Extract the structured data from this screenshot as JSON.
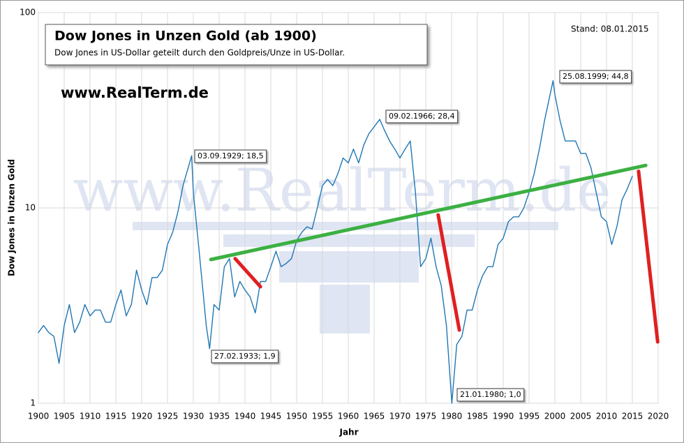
{
  "chart_data": {
    "type": "line",
    "title": "Dow Jones in Unzen Gold  (ab 1900)",
    "subtitle": "Dow Jones in US-Dollar geteilt durch  den Goldpreis/Unze in US-Dollar.",
    "stand": "Stand:  08.01.2015",
    "website": "www.RealTerm.de",
    "watermark": "www.RealTerm.de",
    "x_label": "Jahr",
    "y_label": "Dow Jones in Unzen Gold",
    "log_y": true,
    "grid": true,
    "color": "#1f77b4",
    "xlim": [
      1900,
      2020
    ],
    "ylim": [
      1,
      100
    ],
    "xticks": [
      1900,
      1905,
      1910,
      1915,
      1920,
      1925,
      1930,
      1935,
      1940,
      1945,
      1950,
      1955,
      1960,
      1965,
      1970,
      1975,
      1980,
      1985,
      1990,
      1995,
      2000,
      2005,
      2010,
      2015,
      2020
    ],
    "yticks": [
      1,
      10,
      100
    ],
    "x": [
      1900,
      1901,
      1902,
      1903,
      1904,
      1905,
      1906,
      1907,
      1908,
      1909,
      1910,
      1911,
      1912,
      1913,
      1914,
      1915,
      1916,
      1917,
      1918,
      1919,
      1920,
      1921,
      1922,
      1923,
      1924,
      1925,
      1926,
      1927,
      1928,
      1929.67,
      1930,
      1931,
      1932.5,
      1933.15,
      1934,
      1935,
      1936,
      1937,
      1938,
      1939,
      1940,
      1941,
      1942,
      1943,
      1944,
      1945,
      1946,
      1947,
      1948,
      1949,
      1950,
      1951,
      1952,
      1953,
      1954,
      1955,
      1956,
      1957,
      1958,
      1959,
      1960,
      1961,
      1962,
      1963,
      1964,
      1965,
      1966.1,
      1967,
      1968,
      1969,
      1970,
      1971,
      1972,
      1973,
      1974,
      1975,
      1976,
      1977,
      1978,
      1979,
      1980.05,
      1981,
      1982,
      1983,
      1984,
      1985,
      1986,
      1987,
      1988,
      1989,
      1990,
      1991,
      1992,
      1993,
      1994,
      1995,
      1996,
      1997,
      1998,
      1999.65,
      2000,
      2001,
      2002,
      2003,
      2004,
      2005,
      2006,
      2007,
      2008,
      2009,
      2010,
      2011,
      2012,
      2013,
      2014,
      2015
    ],
    "values": [
      2.3,
      2.5,
      2.3,
      2.2,
      1.6,
      2.5,
      3.2,
      2.3,
      2.6,
      3.2,
      2.8,
      3.0,
      3.0,
      2.6,
      2.6,
      3.2,
      3.8,
      2.8,
      3.2,
      4.8,
      3.8,
      3.2,
      4.4,
      4.4,
      4.8,
      6.5,
      7.5,
      9.5,
      13,
      18.5,
      12,
      6.5,
      2.5,
      1.9,
      3.2,
      3.0,
      5,
      5.5,
      3.5,
      4.2,
      3.8,
      3.5,
      2.9,
      4.2,
      4.2,
      5.0,
      6.0,
      5.0,
      5.2,
      5.5,
      6.8,
      7.5,
      8.0,
      7.8,
      10,
      13,
      14,
      13,
      15,
      18,
      17,
      20,
      17,
      21,
      24,
      26,
      28.4,
      25,
      22,
      20,
      18,
      20,
      22,
      12,
      5,
      5.5,
      7,
      5,
      4,
      2.5,
      1.0,
      2,
      2.2,
      3,
      3,
      3.8,
      4.5,
      5,
      5,
      6.5,
      7,
      8.5,
      9,
      9,
      10,
      12,
      15,
      20,
      28,
      44.8,
      38,
      28,
      22,
      22,
      22,
      19,
      19,
      16,
      12,
      9,
      8.5,
      6.5,
      8,
      11,
      12.5,
      14.5
    ],
    "annotations": [
      "03.09.1929; 18,5",
      "27.02.1933; 1,9",
      "09.02.1966; 28,4",
      "21.01.1980; 1,0",
      "25.08.1999; 44,8"
    ],
    "trend_lines": [
      {
        "color": "#3cb043",
        "x": [
          1933.4,
          2017.6
        ],
        "values": [
          5.44,
          16.5
        ]
      },
      {
        "color": "#e02020",
        "x": [
          1938.1,
          1943
        ],
        "values": [
          5.5,
          3.95
        ]
      },
      {
        "color": "#e02020",
        "x": [
          1977.4,
          1981.5
        ],
        "values": [
          9.2,
          2.37
        ]
      },
      {
        "color": "#e02020",
        "x": [
          2016.2,
          2019.9
        ],
        "values": [
          15.4,
          2.06
        ]
      }
    ]
  }
}
